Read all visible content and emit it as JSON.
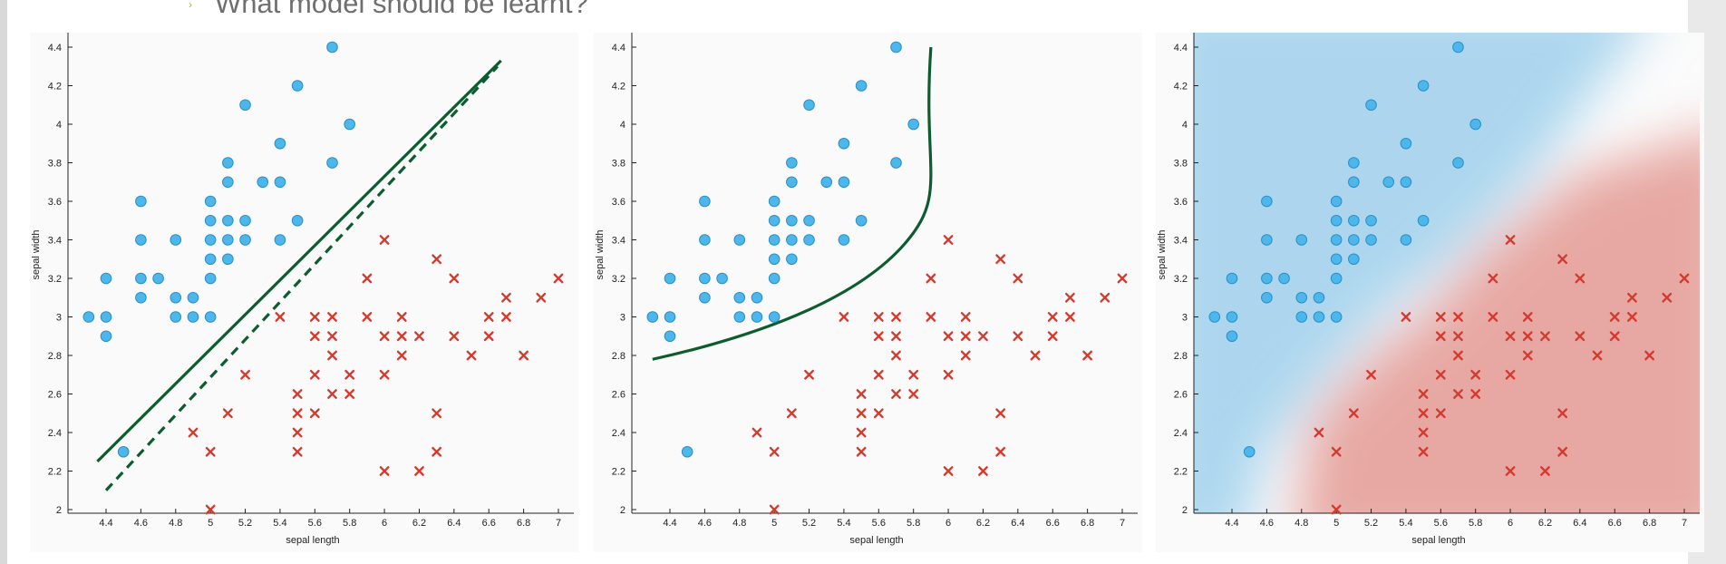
{
  "header": {
    "question": "What model should be learnt?"
  },
  "colors": {
    "circle_fill": "#4db6ea",
    "circle_stroke": "#2a8fc8",
    "cross": "#d43a2e",
    "boundary": "#0c5c2e",
    "region_blue": "#9fd0ec",
    "region_red": "#e49a94"
  },
  "chart_data": [
    {
      "type": "scatter",
      "xlabel": "sepal length",
      "ylabel": "sepal width",
      "xticks": [
        "4.4",
        "4.6",
        "4.8",
        "5",
        "5.2",
        "5.4",
        "5.6",
        "5.8",
        "6",
        "6.2",
        "6.4",
        "6.6",
        "6.8",
        "7"
      ],
      "yticks": [
        "2",
        "2.2",
        "2.4",
        "2.6",
        "2.8",
        "3",
        "3.2",
        "3.4",
        "3.6",
        "3.8",
        "4",
        "4.2",
        "4.4"
      ],
      "xlim": [
        4.2,
        7.1
      ],
      "ylim": [
        1.95,
        4.45
      ],
      "annotation": "linear boundaries (solid and dashed)"
    },
    {
      "type": "scatter",
      "xlabel": "sepal length",
      "ylabel": "sepal width",
      "xticks": [
        "4.4",
        "4.6",
        "4.8",
        "5",
        "5.2",
        "5.4",
        "5.6",
        "5.8",
        "6",
        "6.2",
        "6.4",
        "6.6",
        "6.8",
        "7"
      ],
      "yticks": [
        "2",
        "2.2",
        "2.4",
        "2.6",
        "2.8",
        "3",
        "3.2",
        "3.4",
        "3.6",
        "3.8",
        "4",
        "4.2",
        "4.4"
      ],
      "xlim": [
        4.2,
        7.1
      ],
      "ylim": [
        1.95,
        4.45
      ],
      "annotation": "curved boundary"
    },
    {
      "type": "scatter",
      "xlabel": "sepal length",
      "ylabel": "sepal width",
      "xticks": [
        "4.4",
        "4.6",
        "4.8",
        "5",
        "5.2",
        "5.4",
        "5.6",
        "5.8",
        "6",
        "6.2",
        "6.4",
        "6.6",
        "6.8",
        "7"
      ],
      "yticks": [
        "2",
        "2.2",
        "2.4",
        "2.6",
        "2.8",
        "3",
        "3.2",
        "3.4",
        "3.6",
        "3.8",
        "4",
        "4.2",
        "4.4"
      ],
      "xlim": [
        4.2,
        7.1
      ],
      "ylim": [
        1.95,
        4.45
      ],
      "annotation": "shaded decision regions"
    }
  ],
  "series": {
    "circles": [
      [
        4.3,
        3.0
      ],
      [
        4.4,
        3.0
      ],
      [
        4.4,
        2.9
      ],
      [
        4.4,
        3.2
      ],
      [
        4.5,
        2.3
      ],
      [
        4.6,
        3.1
      ],
      [
        4.6,
        3.2
      ],
      [
        4.6,
        3.4
      ],
      [
        4.6,
        3.6
      ],
      [
        4.7,
        3.2
      ],
      [
        4.8,
        3.0
      ],
      [
        4.8,
        3.1
      ],
      [
        4.8,
        3.4
      ],
      [
        4.9,
        3.0
      ],
      [
        4.9,
        3.1
      ],
      [
        5.0,
        3.0
      ],
      [
        5.0,
        3.2
      ],
      [
        5.0,
        3.3
      ],
      [
        5.0,
        3.4
      ],
      [
        5.0,
        3.5
      ],
      [
        5.0,
        3.6
      ],
      [
        5.1,
        3.3
      ],
      [
        5.1,
        3.4
      ],
      [
        5.1,
        3.5
      ],
      [
        5.1,
        3.7
      ],
      [
        5.1,
        3.8
      ],
      [
        5.2,
        3.4
      ],
      [
        5.2,
        3.5
      ],
      [
        5.2,
        4.1
      ],
      [
        5.3,
        3.7
      ],
      [
        5.4,
        3.4
      ],
      [
        5.4,
        3.7
      ],
      [
        5.4,
        3.9
      ],
      [
        5.5,
        3.5
      ],
      [
        5.5,
        4.2
      ],
      [
        5.7,
        3.8
      ],
      [
        5.7,
        4.4
      ],
      [
        5.8,
        4.0
      ]
    ],
    "crosses": [
      [
        4.9,
        2.4
      ],
      [
        5.0,
        2.0
      ],
      [
        5.0,
        2.3
      ],
      [
        5.1,
        2.5
      ],
      [
        5.2,
        2.7
      ],
      [
        5.4,
        3.0
      ],
      [
        5.5,
        2.3
      ],
      [
        5.5,
        2.4
      ],
      [
        5.5,
        2.5
      ],
      [
        5.5,
        2.6
      ],
      [
        5.6,
        2.5
      ],
      [
        5.6,
        2.7
      ],
      [
        5.6,
        2.9
      ],
      [
        5.6,
        3.0
      ],
      [
        5.7,
        2.6
      ],
      [
        5.7,
        2.8
      ],
      [
        5.7,
        2.9
      ],
      [
        5.7,
        3.0
      ],
      [
        5.8,
        2.6
      ],
      [
        5.8,
        2.7
      ],
      [
        5.9,
        3.0
      ],
      [
        5.9,
        3.2
      ],
      [
        6.0,
        2.2
      ],
      [
        6.0,
        2.7
      ],
      [
        6.0,
        2.9
      ],
      [
        6.0,
        3.4
      ],
      [
        6.1,
        2.8
      ],
      [
        6.1,
        2.9
      ],
      [
        6.1,
        3.0
      ],
      [
        6.2,
        2.2
      ],
      [
        6.2,
        2.9
      ],
      [
        6.3,
        2.3
      ],
      [
        6.3,
        2.5
      ],
      [
        6.3,
        3.3
      ],
      [
        6.4,
        2.9
      ],
      [
        6.4,
        3.2
      ],
      [
        6.5,
        2.8
      ],
      [
        6.6,
        2.9
      ],
      [
        6.6,
        3.0
      ],
      [
        6.7,
        3.0
      ],
      [
        6.7,
        3.1
      ],
      [
        6.8,
        2.8
      ],
      [
        6.9,
        3.1
      ],
      [
        7.0,
        3.2
      ]
    ],
    "linear_solid": [
      [
        4.35,
        2.25
      ],
      [
        6.67,
        4.33
      ]
    ],
    "linear_dashed": [
      [
        4.4,
        2.1
      ],
      [
        6.65,
        4.3
      ]
    ],
    "curve": [
      [
        4.3,
        2.78
      ],
      [
        5.0,
        2.92
      ],
      [
        5.5,
        3.12
      ],
      [
        5.75,
        3.38
      ],
      [
        5.85,
        3.75
      ],
      [
        5.9,
        4.4
      ]
    ]
  }
}
